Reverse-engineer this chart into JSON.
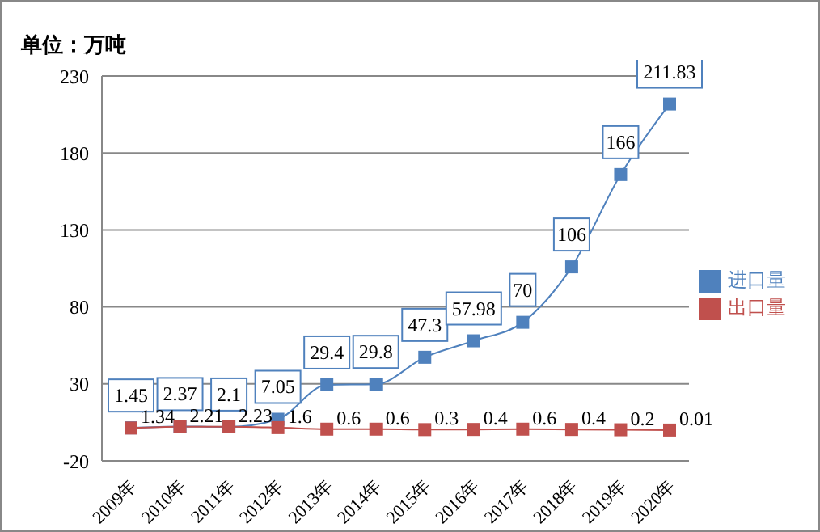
{
  "chart_data": {
    "type": "line",
    "ylabel": "单位：万吨",
    "categories": [
      "2009年",
      "2010年",
      "2011年",
      "2012年",
      "2013年",
      "2014年",
      "2015年",
      "2016年",
      "2017年",
      "2018年",
      "2019年",
      "2020年"
    ],
    "series": [
      {
        "name": "进口量",
        "color": "#4f81bd",
        "values": [
          1.45,
          2.37,
          2.1,
          7.05,
          29.4,
          29.8,
          47.3,
          57.98,
          70,
          106,
          166,
          211.83
        ]
      },
      {
        "name": "出口量",
        "color": "#c0504d",
        "values": [
          1.34,
          2.21,
          2.23,
          1.6,
          0.6,
          0.6,
          0.3,
          0.4,
          0.6,
          0.4,
          0.2,
          0.01
        ]
      }
    ],
    "ylim": [
      -20,
      230
    ],
    "yticks": [
      -20,
      30,
      80,
      130,
      180,
      230
    ],
    "grid": "y",
    "legend": "right",
    "marker": "square",
    "line_style": "solid",
    "data_labels": true
  }
}
